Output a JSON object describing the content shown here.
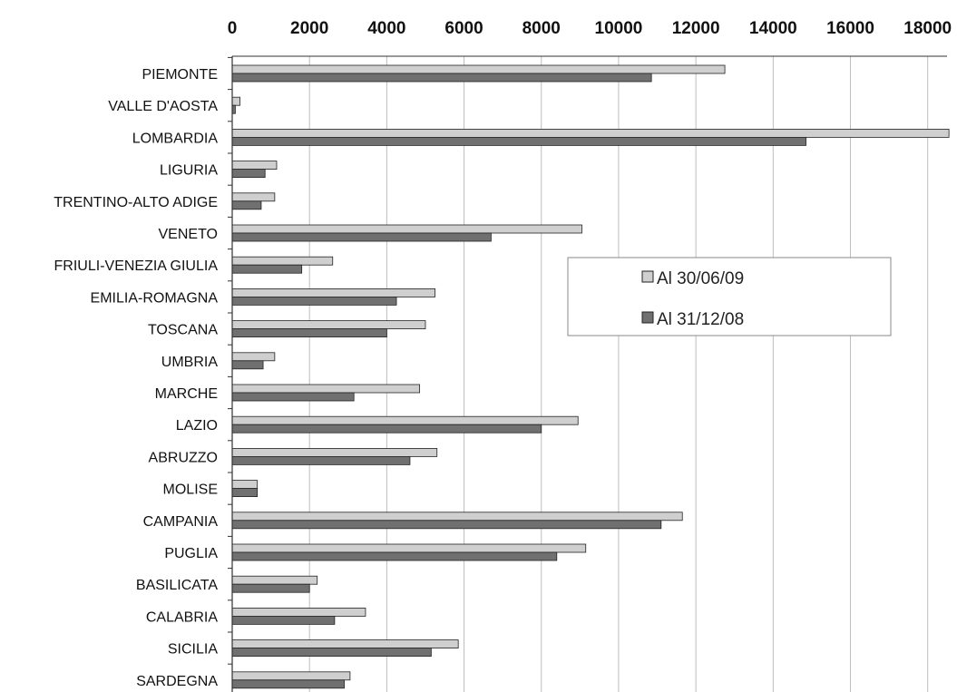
{
  "chart_data": {
    "type": "bar",
    "orientation": "horizontal",
    "categories": [
      "PIEMONTE",
      "VALLE D'AOSTA",
      "LOMBARDIA",
      "LIGURIA",
      "TRENTINO-ALTO ADIGE",
      "VENETO",
      "FRIULI-VENEZIA GIULIA",
      "EMILIA-ROMAGNA",
      "TOSCANA",
      "UMBRIA",
      "MARCHE",
      "LAZIO",
      "ABRUZZO",
      "MOLISE",
      "CAMPANIA",
      "PUGLIA",
      "BASILICATA",
      "CALABRIA",
      "SICILIA",
      "SARDEGNA"
    ],
    "series": [
      {
        "name": "Al 30/06/09",
        "values": [
          12750,
          200,
          18550,
          1150,
          1100,
          9050,
          2600,
          5250,
          5000,
          1100,
          4850,
          8950,
          5300,
          650,
          11650,
          9150,
          2200,
          3450,
          5850,
          3050
        ]
      },
      {
        "name": "Al 31/12/08",
        "values": [
          10850,
          80,
          14850,
          850,
          750,
          6700,
          1800,
          4250,
          4000,
          800,
          3150,
          8000,
          4600,
          650,
          11100,
          8400,
          2000,
          2650,
          5150,
          2900
        ]
      }
    ],
    "xticks": [
      "0",
      "2000",
      "4000",
      "6000",
      "8000",
      "10000",
      "12000",
      "14000",
      "16000",
      "18000"
    ],
    "xlim": [
      0,
      18500
    ],
    "xaxis_position": "top",
    "grid": true,
    "legend_position": "center-right",
    "colors": {
      "series1": "#cfcfcf",
      "series2": "#707070",
      "stroke": "#222222",
      "grid": "#bdbdbd"
    },
    "title": "",
    "xlabel": "",
    "ylabel": ""
  }
}
